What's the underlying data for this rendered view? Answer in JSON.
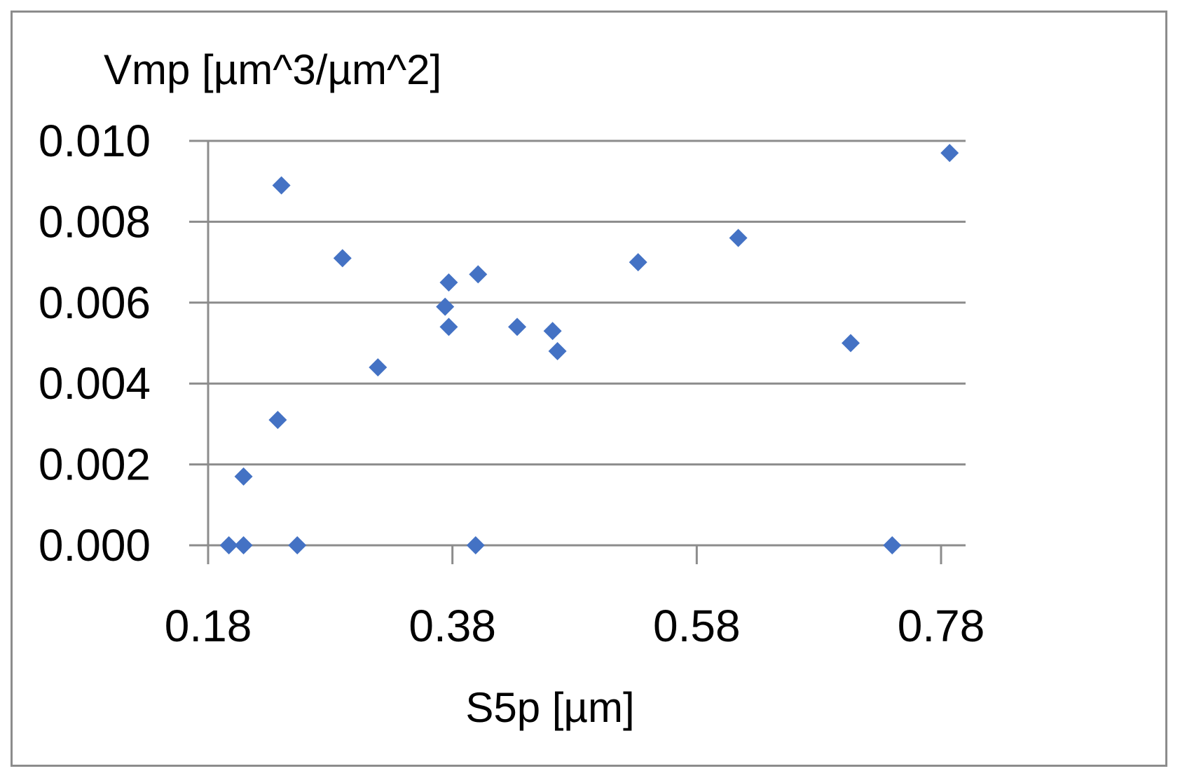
{
  "chart_data": {
    "type": "scatter",
    "title": "",
    "xlabel": "S5p [µm]",
    "ylabel": "Vmp [µm^3/µm^2]",
    "xlim": [
      0.165,
      0.795
    ],
    "ylim": [
      0.0,
      0.01
    ],
    "x_ticks": [
      "0.18",
      "0.38",
      "0.58",
      "0.78"
    ],
    "y_ticks": [
      "0.000",
      "0.002",
      "0.004",
      "0.006",
      "0.008",
      "0.010"
    ],
    "grid": "horizontal",
    "legend": "none",
    "marker": "diamond",
    "series": [
      {
        "color": "#4472C4",
        "points": [
          {
            "x": 0.197,
            "y": 0.0
          },
          {
            "x": 0.209,
            "y": 0.0
          },
          {
            "x": 0.209,
            "y": 0.0017
          },
          {
            "x": 0.237,
            "y": 0.0031
          },
          {
            "x": 0.24,
            "y": 0.0089
          },
          {
            "x": 0.253,
            "y": 0.0
          },
          {
            "x": 0.29,
            "y": 0.0071
          },
          {
            "x": 0.319,
            "y": 0.0044
          },
          {
            "x": 0.374,
            "y": 0.0059
          },
          {
            "x": 0.377,
            "y": 0.0065
          },
          {
            "x": 0.377,
            "y": 0.0054
          },
          {
            "x": 0.399,
            "y": 0.0
          },
          {
            "x": 0.401,
            "y": 0.0067
          },
          {
            "x": 0.433,
            "y": 0.0054
          },
          {
            "x": 0.462,
            "y": 0.0053
          },
          {
            "x": 0.466,
            "y": 0.0048
          },
          {
            "x": 0.532,
            "y": 0.007
          },
          {
            "x": 0.614,
            "y": 0.0076
          },
          {
            "x": 0.706,
            "y": 0.005
          },
          {
            "x": 0.74,
            "y": 0.0
          },
          {
            "x": 0.787,
            "y": 0.0097
          }
        ]
      }
    ]
  }
}
